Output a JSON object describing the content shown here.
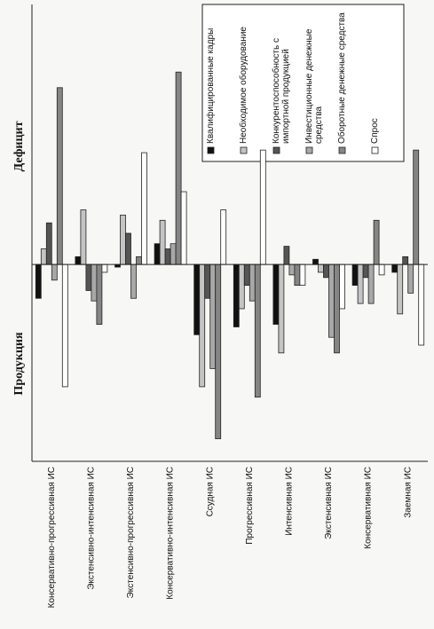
{
  "chart_data": {
    "type": "bar",
    "categories": [
      "Консервативно-прогрессивная ИС",
      "Экстенсивно-интенсивная ИС",
      "Экстенсивно-прогрессивная ИС",
      "Консервативно-интенсивная ИС",
      "Ссудная ИС",
      "Прогрессивная ИС",
      "Интенсивная ИС",
      "Экстенсивная ИС",
      "Консервативная ИС",
      "Заемная ИС"
    ],
    "series": [
      {
        "name": "Квалифицированные кадры",
        "color": "#111111",
        "values": [
          -13,
          3,
          -1,
          8,
          -27,
          -24,
          -23,
          2,
          -8,
          -3
        ]
      },
      {
        "name": "Необходимое оборудование",
        "color": "#c4c4c4",
        "values": [
          6,
          21,
          19,
          17,
          -47,
          -17,
          -34,
          -3,
          -15,
          -19
        ]
      },
      {
        "name": "Конкурентоспособность с импортной продукцией",
        "color": "#555555",
        "values": [
          16,
          -10,
          12,
          6,
          -13,
          -8,
          7,
          -5,
          -5,
          3
        ]
      },
      {
        "name": "Инвестиционные денежные средства",
        "color": "#a8a8a8",
        "values": [
          -6,
          -14,
          -13,
          8,
          -40,
          -14,
          -4,
          -28,
          -15,
          -11
        ]
      },
      {
        "name": "Оборотные денежные средства",
        "color": "#858585",
        "values": [
          68,
          -23,
          3,
          74,
          -67,
          -51,
          -8,
          -34,
          17,
          44
        ]
      },
      {
        "name": "Спрос",
        "color": "#ffffff",
        "values": [
          -47,
          -3,
          43,
          28,
          21,
          44,
          -8,
          -17,
          -4,
          -31
        ]
      }
    ],
    "annotations": [
      "Дефицит",
      "Продукция"
    ],
    "ylim": [
      -75,
      100
    ],
    "legend": "top-right"
  }
}
